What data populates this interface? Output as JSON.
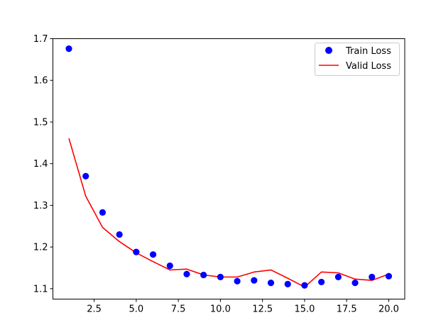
{
  "chart_data": {
    "type": "line",
    "title": "",
    "xlabel": "",
    "ylabel": "",
    "xlim": [
      0.05,
      20.95
    ],
    "ylim": [
      1.075,
      1.7
    ],
    "grid": false,
    "legend_position": "upper right",
    "x": [
      1,
      2,
      3,
      4,
      5,
      6,
      7,
      8,
      9,
      10,
      11,
      12,
      13,
      14,
      15,
      16,
      17,
      18,
      19,
      20
    ],
    "x_ticks": [
      2.5,
      5.0,
      7.5,
      10.0,
      12.5,
      15.0,
      17.5,
      20.0
    ],
    "x_tick_labels": [
      "2.5",
      "5.0",
      "7.5",
      "10.0",
      "12.5",
      "15.0",
      "17.5",
      "20.0"
    ],
    "y_ticks": [
      1.1,
      1.2,
      1.3,
      1.4,
      1.5,
      1.6,
      1.7
    ],
    "y_tick_labels": [
      "1.1",
      "1.2",
      "1.3",
      "1.4",
      "1.5",
      "1.6",
      "1.7"
    ],
    "series": [
      {
        "name": "Train Loss",
        "style": "scatter",
        "marker": "circle",
        "color": "#0000ff",
        "values": [
          1.676,
          1.37,
          1.283,
          1.23,
          1.188,
          1.182,
          1.155,
          1.135,
          1.133,
          1.128,
          1.118,
          1.12,
          1.114,
          1.111,
          1.108,
          1.116,
          1.128,
          1.114,
          1.128,
          1.13
        ]
      },
      {
        "name": "Valid Loss",
        "style": "line",
        "color": "#ff0000",
        "values": [
          1.461,
          1.322,
          1.247,
          1.213,
          1.186,
          1.165,
          1.145,
          1.147,
          1.133,
          1.128,
          1.128,
          1.14,
          1.145,
          1.125,
          1.104,
          1.14,
          1.138,
          1.123,
          1.12,
          1.135
        ]
      }
    ]
  },
  "legend": {
    "items": [
      {
        "label": "Train Loss"
      },
      {
        "label": "Valid Loss"
      }
    ]
  }
}
